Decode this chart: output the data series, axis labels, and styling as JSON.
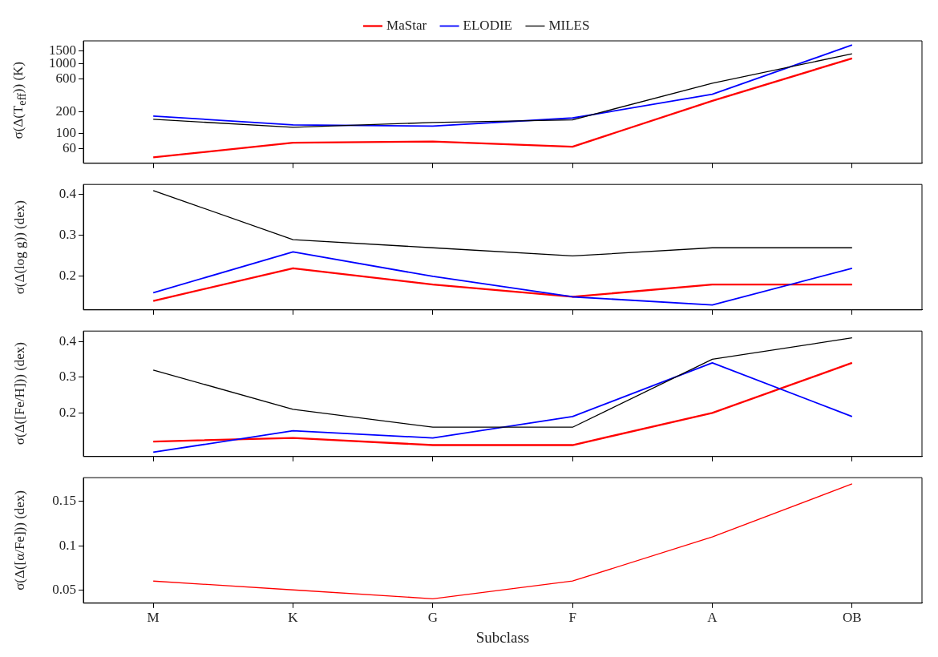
{
  "chart_data": [
    {
      "type": "line",
      "ylabel": "σ(Δ(T$_{eff}$)) (K)",
      "categories": [
        null,
        null,
        null,
        null,
        null,
        null
      ],
      "log": "y",
      "ylim": [
        37,
        2100
      ],
      "yticks": [
        60,
        100,
        200,
        600,
        1000,
        1500
      ],
      "legend": "top",
      "tick_labels": "y",
      "grid": false,
      "marker": "none",
      "series": [
        {
          "name": "MaStar",
          "color": "#ff0000",
          "values": [
            45,
            73,
            76,
            64,
            290,
            1180
          ]
        },
        {
          "name": "ELODIE",
          "color": "#0000ff",
          "values": [
            176,
            131,
            126,
            165,
            360,
            1830
          ]
        },
        {
          "name": "MILES",
          "color": "#000000",
          "values": [
            158,
            121,
            142,
            155,
            520,
            1370
          ]
        }
      ]
    },
    {
      "type": "line",
      "ylabel": "σ(Δ(log g)) (dex)",
      "categories": [
        null,
        null,
        null,
        null,
        null,
        null
      ],
      "ylim": [
        0.118,
        0.425
      ],
      "yticks": [
        0.2,
        0.3,
        0.4
      ],
      "tick_labels": "y",
      "grid": false,
      "marker": "none",
      "series": [
        {
          "color": "#ff0000",
          "values": [
            0.14,
            0.22,
            0.18,
            0.15,
            0.18,
            0.18
          ]
        },
        {
          "color": "#0000ff",
          "values": [
            0.16,
            0.26,
            0.2,
            0.15,
            0.13,
            0.22
          ]
        },
        {
          "color": "#000000",
          "values": [
            0.41,
            0.29,
            0.27,
            0.25,
            0.27,
            0.27
          ]
        }
      ]
    },
    {
      "type": "line",
      "ylabel": "σ(Δ([Fe/H])) (dex)",
      "categories": [
        null,
        null,
        null,
        null,
        null,
        null
      ],
      "ylim": [
        0.078,
        0.429
      ],
      "yticks": [
        0.2,
        0.3,
        0.4
      ],
      "tick_labels": "y",
      "grid": false,
      "marker": "none",
      "series": [
        {
          "color": "#ff0000",
          "values": [
            0.12,
            0.13,
            0.11,
            0.11,
            0.2,
            0.34
          ]
        },
        {
          "color": "#0000ff",
          "values": [
            0.09,
            0.15,
            0.13,
            0.19,
            0.34,
            0.19
          ]
        },
        {
          "color": "#000000",
          "values": [
            0.32,
            0.21,
            0.16,
            0.16,
            0.35,
            0.41
          ]
        }
      ]
    },
    {
      "type": "line",
      "ylabel": "σ(Δ([α/Fe])) (dex)",
      "xlabel": "Subclass",
      "categories": [
        "M",
        "K",
        "G",
        "F",
        "A",
        "OB"
      ],
      "ylim": [
        0.035,
        0.177
      ],
      "yticks": [
        0.05,
        0.1,
        0.15
      ],
      "grid": false,
      "marker": "none",
      "series": [
        {
          "color": "#ff0000",
          "values": [
            0.06,
            0.05,
            0.04,
            0.06,
            0.11,
            0.17
          ]
        }
      ]
    }
  ]
}
